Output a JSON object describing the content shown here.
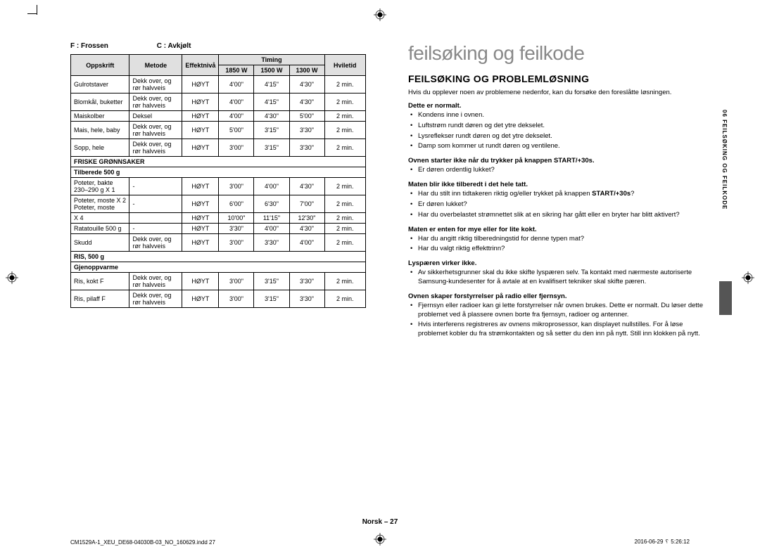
{
  "legend": {
    "f": "F : Frossen",
    "c": "C : Avkjølt"
  },
  "table": {
    "headers": {
      "oppskrift": "Oppskrift",
      "metode": "Metode",
      "effekt": "Effektnivå",
      "timing": "Timing",
      "w1850": "1850 W",
      "w1500": "1500 W",
      "w1300": "1300 W",
      "hvile": "Hviletid"
    },
    "section1_rows": [
      {
        "o": "Gulrotstaver",
        "m": "Dekk over, og rør halvveis",
        "e": "HØYT",
        "t1": "4'00\"",
        "t2": "4'15\"",
        "t3": "4'30\"",
        "h": "2 min."
      },
      {
        "o": "Blomkål, buketter",
        "m": "Dekk over, og rør halvveis",
        "e": "HØYT",
        "t1": "4'00\"",
        "t2": "4'15\"",
        "t3": "4'30\"",
        "h": "2 min."
      },
      {
        "o": "Maiskolber",
        "m": "Deksel",
        "e": "HØYT",
        "t1": "4'00\"",
        "t2": "4'30\"",
        "t3": "5'00\"",
        "h": "2 min."
      },
      {
        "o": "Mais, hele, baby",
        "m": "Dekk over, og rør halvveis",
        "e": "HØYT",
        "t1": "5'00\"",
        "t2": "3'15\"",
        "t3": "3'30\"",
        "h": "2 min."
      },
      {
        "o": "Sopp, hele",
        "m": "Dekk over, og rør halvveis",
        "e": "HØYT",
        "t1": "3'00\"",
        "t2": "3'15\"",
        "t3": "3'30\"",
        "h": "2 min."
      }
    ],
    "section2_title": "FRISKE GRØNNSAKER",
    "section2_sub": "Tilberede 500 g",
    "section2_rows": [
      {
        "o": "Poteter, bakte 230–290 g X 1",
        "m": "-",
        "e": "HØYT",
        "t1": "3'00\"",
        "t2": "4'00\"",
        "t3": "4'30\"",
        "h": "2 min."
      },
      {
        "o": "Poteter, moste X 2 Poteter, moste",
        "m": "-",
        "e": "HØYT",
        "t1": "6'00\"",
        "t2": "6'30\"",
        "t3": "7'00\"",
        "h": "2 min."
      },
      {
        "o": "X 4",
        "m": "",
        "e": "HØYT",
        "t1": "10'00\"",
        "t2": "11'15\"",
        "t3": "12'30\"",
        "h": "2 min."
      },
      {
        "o": "Ratatouille 500 g",
        "m": "-",
        "e": "HØYT",
        "t1": "3'30\"",
        "t2": "4'00\"",
        "t3": "4'30\"",
        "h": "2 min."
      },
      {
        "o": "Skudd",
        "m": "Dekk over, og rør halvveis",
        "e": "HØYT",
        "t1": "3'00\"",
        "t2": "3'30\"",
        "t3": "4'00\"",
        "h": "2 min."
      }
    ],
    "section3_title": "RIS, 500 g",
    "section3_sub": "Gjenoppvarme",
    "section3_rows": [
      {
        "o": "Ris, kokt F",
        "m": "Dekk over, og rør halvveis",
        "e": "HØYT",
        "t1": "3'00\"",
        "t2": "3'15\"",
        "t3": "3'30\"",
        "h": "2 min."
      },
      {
        "o": "Ris, pilaff F",
        "m": "Dekk over, og rør halvveis",
        "e": "HØYT",
        "t1": "3'00\"",
        "t2": "3'15\"",
        "t3": "3'30\"",
        "h": "2 min."
      }
    ]
  },
  "right": {
    "chapter_title": "feilsøking og feilkode",
    "h1": "FEILSØKING OG PROBLEMLØSNING",
    "intro": "Hvis du opplever noen av problemene nedenfor, kan du forsøke den foreslåtte løsningen.",
    "sections": [
      {
        "heading": "Dette er normalt.",
        "items": [
          "Kondens inne i ovnen.",
          "Luftstrøm rundt døren og det ytre dekselet.",
          "Lysreflekser rundt døren og det ytre dekselet.",
          "Damp som kommer ut rundt døren og ventilene."
        ]
      },
      {
        "heading": "Ovnen starter ikke når du trykker på knappen START/+30s.",
        "items": [
          "Er døren ordentlig lukket?"
        ]
      },
      {
        "heading": "Maten blir ikke tilberedt i det hele tatt.",
        "items": [
          "Har du stilt inn tidtakeren riktig og/eller trykket på knappen START/+30s?",
          "Er døren lukket?",
          "Har du overbelastet strømnettet slik at en sikring har gått eller en bryter har blitt aktivert?"
        ],
        "item0_has_bold": true
      },
      {
        "heading": "Maten er enten for mye eller for lite kokt.",
        "items": [
          "Har du angitt riktig tilberedningstid for denne typen mat?",
          "Har du valgt riktig effekttrinn?"
        ]
      },
      {
        "heading": "Lyspæren virker ikke.",
        "items": [
          "Av sikkerhetsgrunner skal du ikke skifte lyspæren selv. Ta kontakt med nærmeste autoriserte Samsung-kundesenter for å avtale at en kvalifisert tekniker skal skifte pæren."
        ]
      },
      {
        "heading": "Ovnen skaper forstyrrelser på radio eller fjernsyn.",
        "items": [
          "Fjernsyn eller radioer kan gi lette forstyrrelser når ovnen brukes. Dette er normalt. Du løser dette problemet ved å plassere ovnen borte fra fjernsyn, radioer og antenner.",
          "Hvis interferens registreres av ovnens mikroprosessor, kan displayet nullstilles. For å løse problemet kobler du fra strømkontakten og så setter du den inn på nytt. Still inn klokken på nytt."
        ]
      }
    ]
  },
  "side_tab": "06  FEILSØKING OG FEILKODE",
  "footer": {
    "page": "Norsk – 27"
  },
  "print": {
    "left": "CM1529A-1_XEU_DE68-04030B-03_NO_160629.indd   27",
    "right": "2016-06-29   ␦ 5:26:12"
  }
}
